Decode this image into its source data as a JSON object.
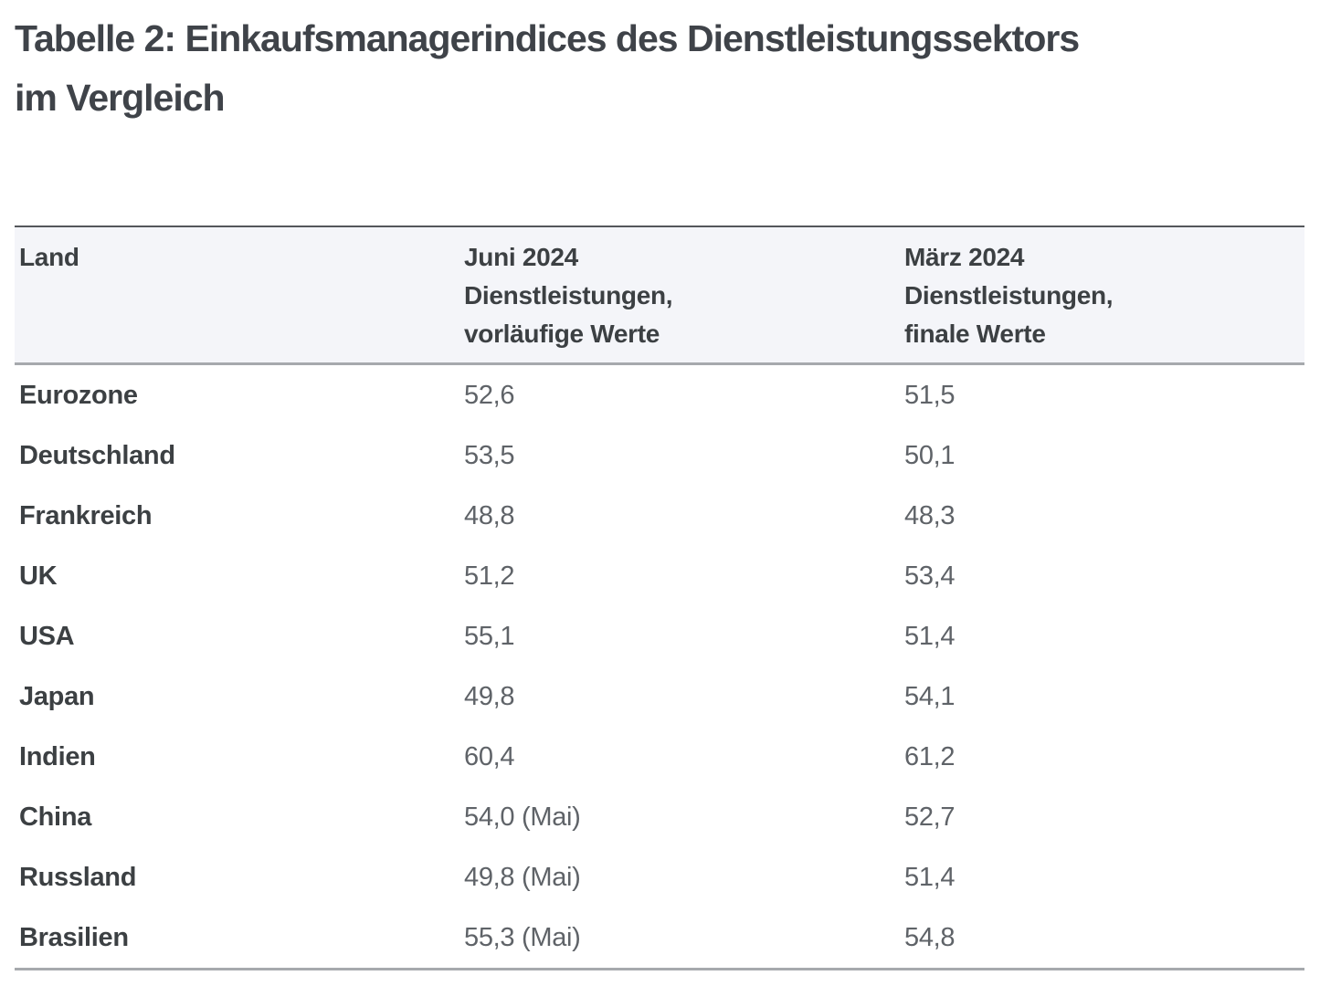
{
  "page": {
    "title_lines": [
      "Tabelle 2: Einkaufsmanagerindices des Dienstleistungssektors",
      "im Vergleich"
    ]
  },
  "table": {
    "columns": [
      {
        "lines": [
          "Land"
        ]
      },
      {
        "lines": [
          "Juni 2024",
          "Dienstleistungen,",
          "vorläufige Werte"
        ]
      },
      {
        "lines": [
          "März 2024",
          "Dienstleistungen,",
          "finale Werte"
        ]
      }
    ],
    "rows": [
      {
        "land": "Eurozone",
        "juni": "52,6",
        "maerz": "51,5"
      },
      {
        "land": "Deutschland",
        "juni": "53,5",
        "maerz": "50,1"
      },
      {
        "land": "Frankreich",
        "juni": "48,8",
        "maerz": "48,3"
      },
      {
        "land": "UK",
        "juni": "51,2",
        "maerz": "53,4"
      },
      {
        "land": "USA",
        "juni": "55,1",
        "maerz": "51,4"
      },
      {
        "land": "Japan",
        "juni": "49,8",
        "maerz": "54,1"
      },
      {
        "land": "Indien",
        "juni": "60,4",
        "maerz": "61,2"
      },
      {
        "land": "China",
        "juni": "54,0 (Mai)",
        "maerz": "52,7"
      },
      {
        "land": "Russland",
        "juni": "49,8 (Mai)",
        "maerz": "51,4"
      },
      {
        "land": "Brasilien",
        "juni": "55,3 (Mai)",
        "maerz": "54,8"
      }
    ]
  },
  "colors": {
    "title_text": "#3f4349",
    "header_background": "#f4f5f9",
    "header_text": "#3c4043",
    "country_text": "#3c4043",
    "value_text": "#5f6368",
    "top_border": "#54575b",
    "divider_border": "#a6a9ad"
  }
}
